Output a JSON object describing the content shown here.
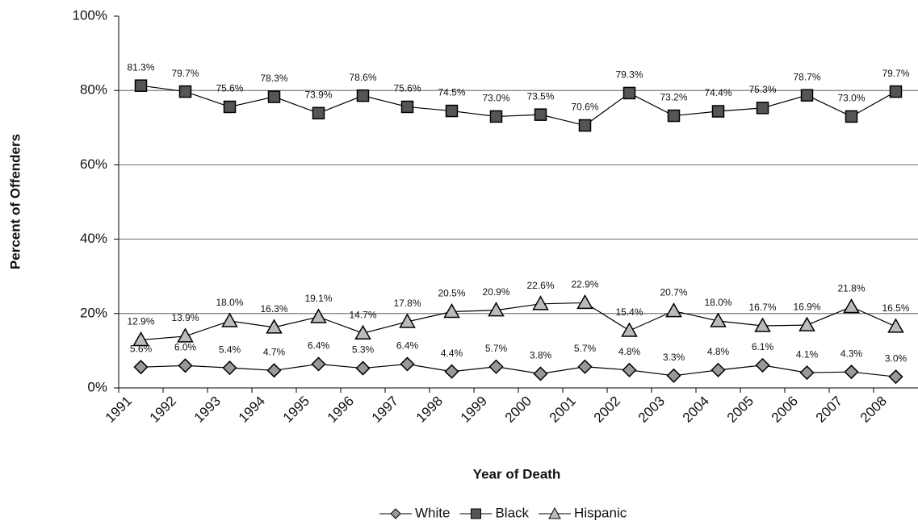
{
  "chart_data": {
    "type": "line",
    "y_label": "Percent of Offenders",
    "x_label": "Year of Death",
    "categories": [
      "1991",
      "1992",
      "1993",
      "1994",
      "1995",
      "1996",
      "1997",
      "1998",
      "1999",
      "2000",
      "2001",
      "2002",
      "2003",
      "2004",
      "2005",
      "2006",
      "2007",
      "2008"
    ],
    "series": [
      {
        "name": "White",
        "color": "#999999",
        "marker": "diamond",
        "values": [
          5.6,
          6.0,
          5.4,
          4.7,
          6.4,
          5.3,
          6.4,
          4.4,
          5.7,
          3.8,
          5.7,
          4.8,
          3.3,
          4.8,
          6.1,
          4.1,
          4.3,
          3.0
        ],
        "value_labels": [
          "5.6%",
          "6.0%",
          "5.4%",
          "4.7%",
          "6.4%",
          "5.3%",
          "6.4%",
          "4.4%",
          "5.7%",
          "3.8%",
          "5.7%",
          "4.8%",
          "3.3%",
          "4.8%",
          "6.1%",
          "4.1%",
          "4.3%",
          "3.0%"
        ]
      },
      {
        "name": "Black",
        "color": "#555555",
        "marker": "square",
        "values": [
          81.3,
          79.7,
          75.6,
          78.3,
          73.9,
          78.6,
          75.6,
          74.5,
          73.0,
          73.5,
          70.6,
          79.3,
          73.2,
          74.4,
          75.3,
          78.7,
          73.0,
          79.7
        ],
        "value_labels": [
          "81.3%",
          "79.7%",
          "75.6%",
          "78.3%",
          "73.9%",
          "78.6%",
          "75.6%",
          "74.5%",
          "73.0%",
          "73.5%",
          "70.6%",
          "79.3%",
          "73.2%",
          "74.4%",
          "75.3%",
          "78.7%",
          "73.0%",
          "79.7%"
        ]
      },
      {
        "name": "Hispanic",
        "color": "#bbbbbb",
        "marker": "triangle",
        "values": [
          12.9,
          13.9,
          18.0,
          16.3,
          19.1,
          14.7,
          17.8,
          20.5,
          20.9,
          22.6,
          22.9,
          15.4,
          20.7,
          18.0,
          16.7,
          16.9,
          21.8,
          16.5
        ],
        "value_labels": [
          "12.9%",
          "13.9%",
          "18.0%",
          "16.3%",
          "19.1%",
          "14.7%",
          "17.8%",
          "20.5%",
          "20.9%",
          "22.6%",
          "22.9%",
          "15.4%",
          "20.7%",
          "18.0%",
          "16.7%",
          "16.9%",
          "21.8%",
          "16.5%"
        ]
      }
    ],
    "ylim": [
      0,
      100
    ],
    "yticks": [
      {
        "value": 0,
        "label": "0%"
      },
      {
        "value": 20,
        "label": "20%"
      },
      {
        "value": 40,
        "label": "40%"
      },
      {
        "value": 60,
        "label": "60%"
      },
      {
        "value": 80,
        "label": "80%"
      },
      {
        "value": 100,
        "label": "100%"
      }
    ],
    "grid": true,
    "legend": "bottom"
  }
}
